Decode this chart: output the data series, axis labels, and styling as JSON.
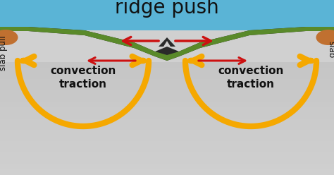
{
  "title": "ridge push",
  "title_fontsize": 20,
  "title_color": "#111111",
  "bg_color": "#ffffff",
  "ocean_color": "#5ab4d6",
  "plate_dark": "#2a2a2a",
  "plate_green": "#5a8a2a",
  "plate_green_light": "#6aa030",
  "mantle_top": "#a0a0a0",
  "mantle_bot": "#e0e0e0",
  "arrow_red": "#cc1111",
  "arrow_orange": "#f5a800",
  "label_convection": "convection\ntraction",
  "convection_fontsize": 11,
  "rock_brown": "#c07030"
}
